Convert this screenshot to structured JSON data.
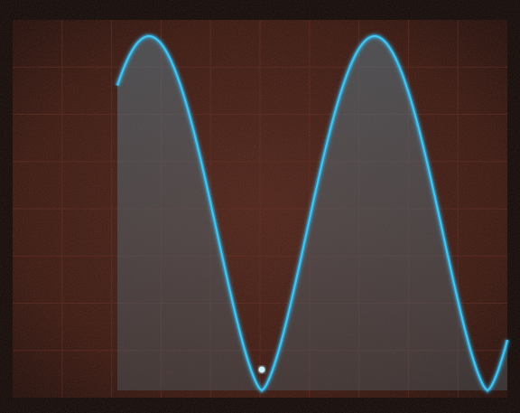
{
  "scene": {
    "description_free": true,
    "colors": {
      "bezel": "#0a0605",
      "screen_background": "#3a1a14",
      "screen_background_dark": "#1e0d0a",
      "graticule": "#5a2b22",
      "trace": "#2fb4e8",
      "trace_glow": "#8fe4ff",
      "trace_fill": "#4a5f6a"
    },
    "graticule": {
      "major_columns": 10,
      "major_rows": 8
    },
    "waveform": {
      "type": "raised-sine-pulse-train",
      "visible_peaks": 2,
      "visible_troughs": 2
    }
  }
}
